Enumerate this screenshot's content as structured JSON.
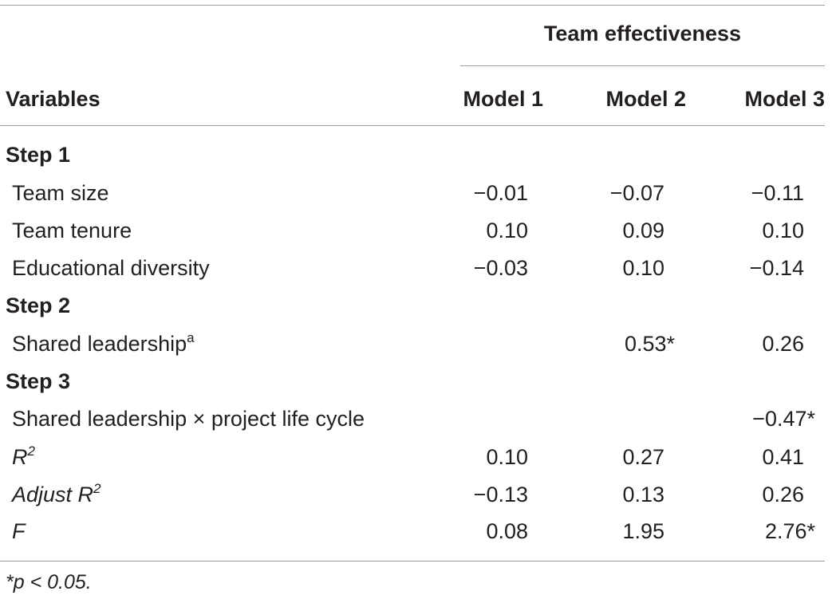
{
  "header": {
    "group_label": "Team effectiveness",
    "variables_label": "Variables",
    "models": [
      "Model 1",
      "Model 2",
      "Model 3"
    ]
  },
  "rows": [
    {
      "type": "step",
      "label": "Step 1"
    },
    {
      "type": "data",
      "label": "Team size",
      "values": [
        "−0.01",
        "−0.07",
        "−0.11"
      ]
    },
    {
      "type": "data",
      "label": "Team tenure",
      "values": [
        "0.10",
        "0.09",
        "0.10"
      ]
    },
    {
      "type": "data",
      "label": "Educational diversity",
      "values": [
        "−0.03",
        "0.10",
        "−0.14"
      ]
    },
    {
      "type": "step",
      "label": "Step 2"
    },
    {
      "type": "data",
      "label": "Shared leadership",
      "sup": "a",
      "values": [
        "",
        "0.53*",
        "0.26"
      ]
    },
    {
      "type": "step",
      "label": "Step 3"
    },
    {
      "type": "data",
      "label": "Shared leadership × project life cycle",
      "values": [
        "",
        "",
        "−0.47*"
      ]
    },
    {
      "type": "stat",
      "label": "R",
      "sup": "2",
      "values": [
        "0.10",
        "0.27",
        "0.41"
      ]
    },
    {
      "type": "stat",
      "label": "Adjust R",
      "sup": "2",
      "values": [
        "−0.13",
        "0.13",
        "0.26"
      ]
    },
    {
      "type": "stat",
      "label": "F",
      "values": [
        "0.08",
        "1.95",
        "2.76*"
      ]
    }
  ],
  "footnote": "*p < 0.05."
}
